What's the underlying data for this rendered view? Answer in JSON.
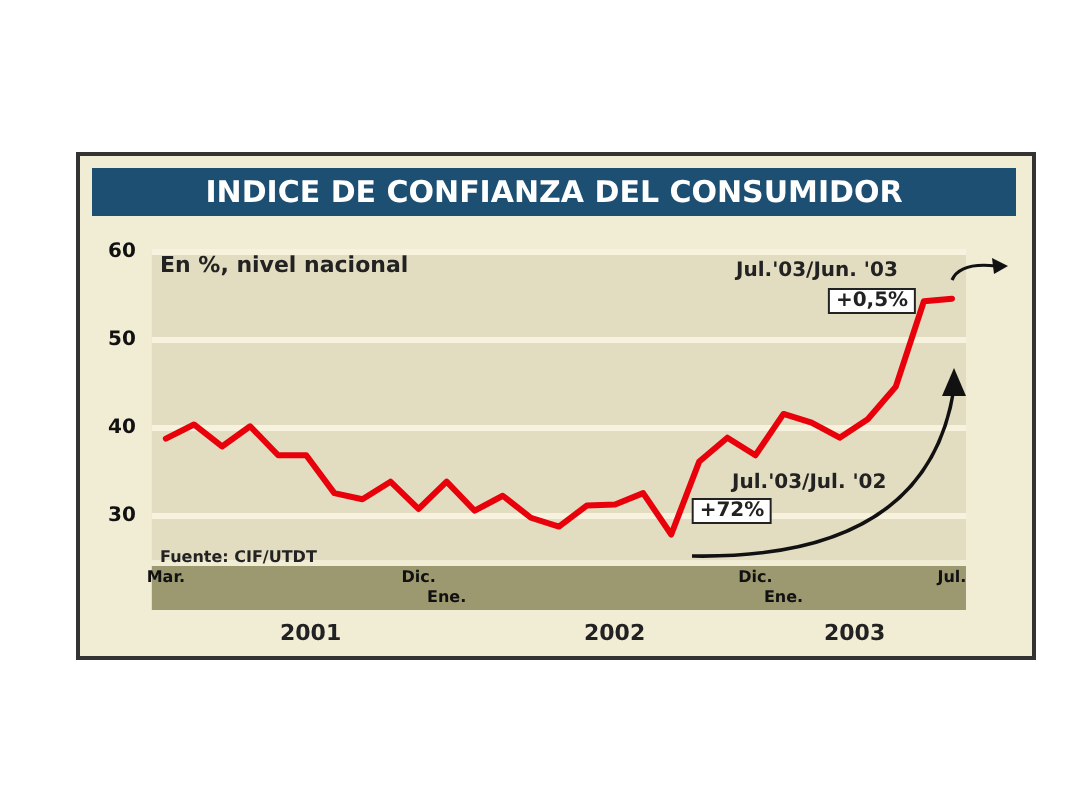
{
  "chart_data": {
    "type": "line",
    "title": "INDICE DE CONFIANZA DEL CONSUMIDOR",
    "subtitle": "En %, nivel nacional",
    "categories": [
      "Mar.",
      null,
      null,
      null,
      null,
      null,
      null,
      null,
      null,
      "Dic.",
      "Ene.",
      null,
      null,
      null,
      null,
      null,
      null,
      null,
      null,
      null,
      null,
      "Dic.",
      "Ene.",
      null,
      null,
      null,
      null,
      null,
      "Jul."
    ],
    "series": [
      {
        "color": "#e8000b",
        "values": [
          38.8,
          40.4,
          37.9,
          40.2,
          36.9,
          36.9,
          32.6,
          31.9,
          33.9,
          30.8,
          33.9,
          30.6,
          32.3,
          29.8,
          28.8,
          31.2,
          31.3,
          32.6,
          27.9,
          36.2,
          38.9,
          36.9,
          41.6,
          40.6,
          38.9,
          41,
          44.7,
          54.4,
          54.7
        ]
      }
    ],
    "ylim": [
      25,
      60
    ],
    "yticks": [
      30,
      40,
      50,
      60
    ],
    "grid": "y",
    "legend": false,
    "marker": "none",
    "line_style": "solid",
    "annotations": [
      "Fuente: CIF/UTDT",
      "Jul.'03/Jun. '03",
      "+0,5%",
      "Jul.'03/Jul. '02",
      "+72%",
      "2001",
      "2002",
      "2003"
    ]
  }
}
